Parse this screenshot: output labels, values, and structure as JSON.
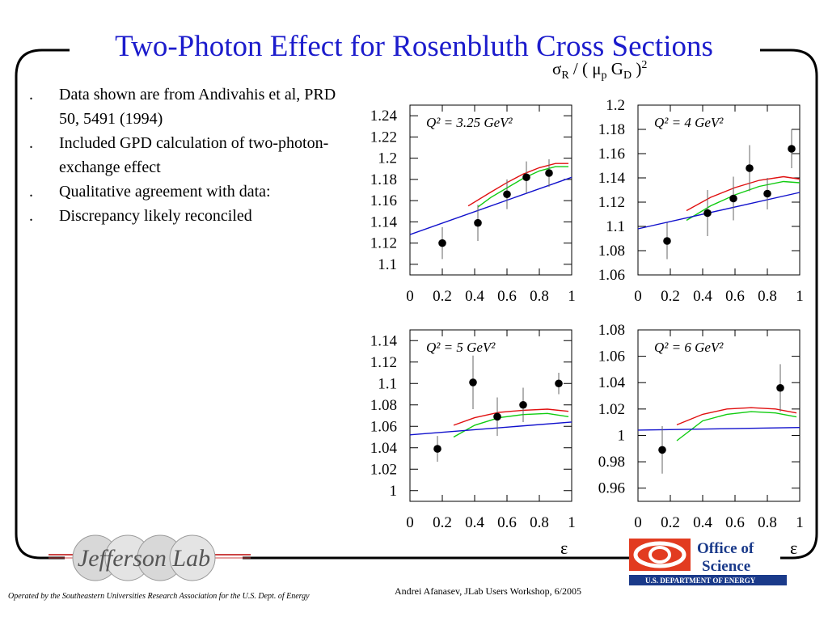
{
  "title": "Two-Photon Effect for Rosenbluth Cross Sections",
  "bullets": [
    "Data shown are from Andivahis et al, PRD 50, 5491 (1994)",
    "Included GPD calculation of two-photon-exchange effect",
    "Qualitative agreement with data:",
    "Discrepancy likely reconciled"
  ],
  "bullet_marker": ".",
  "ylabel": {
    "sigma": "σ",
    "r": "R",
    "mid": " / ( μ",
    "p": "p",
    "g": " G",
    "d": "D",
    "close": " )",
    "sq": "2"
  },
  "xlabel": "ε",
  "footer_left": "Operated by the Southeastern Universities Research Association for the U.S. Dept. of Energy",
  "footer_right": "Andrei Afanasev, JLab Users Workshop, 6/2005",
  "logo_left": "Jefferson Lab",
  "logo_right": {
    "line1": "Office of",
    "line2": "Science",
    "line3": "U.S. DEPARTMENT OF ENERGY"
  },
  "colors": {
    "title": "#1c1ccc",
    "red": "#e01010",
    "green": "#10cc10",
    "blue": "#1010cc"
  },
  "chart_data": [
    {
      "type": "scatter",
      "annotation": "Q² = 3.25 GeV²",
      "xlim": [
        0,
        1
      ],
      "ylim": [
        1.09,
        1.25
      ],
      "xticks": [
        "0",
        "0.2",
        "0.4",
        "0.6",
        "0.8",
        "1"
      ],
      "yticks": [
        "1.1",
        "1.12",
        "1.14",
        "1.16",
        "1.18",
        "1.2",
        "1.22",
        "1.24"
      ],
      "points": [
        {
          "x": 0.2,
          "y": 1.12,
          "err": 0.015
        },
        {
          "x": 0.42,
          "y": 1.139,
          "err": 0.017
        },
        {
          "x": 0.6,
          "y": 1.166,
          "err": 0.014
        },
        {
          "x": 0.72,
          "y": 1.182,
          "err": 0.015
        },
        {
          "x": 0.86,
          "y": 1.186,
          "err": 0.013
        }
      ],
      "lines": [
        {
          "color": "red",
          "x": [
            0.36,
            0.5,
            0.6,
            0.7,
            0.8,
            0.9,
            0.98
          ],
          "y": [
            1.155,
            1.168,
            1.177,
            1.185,
            1.191,
            1.195,
            1.195
          ]
        },
        {
          "color": "green",
          "x": [
            0.42,
            0.5,
            0.6,
            0.7,
            0.8,
            0.9,
            0.98
          ],
          "y": [
            1.154,
            1.163,
            1.172,
            1.181,
            1.188,
            1.192,
            1.192
          ]
        },
        {
          "color": "blue",
          "x": [
            0,
            1
          ],
          "y": [
            1.128,
            1.182
          ]
        }
      ]
    },
    {
      "type": "scatter",
      "annotation": "Q² = 4 GeV²",
      "xlim": [
        0,
        1
      ],
      "ylim": [
        1.06,
        1.2
      ],
      "xticks": [
        "0",
        "0.2",
        "0.4",
        "0.6",
        "0.8",
        "1"
      ],
      "yticks": [
        "1.06",
        "1.08",
        "1.1",
        "1.12",
        "1.14",
        "1.16",
        "1.18",
        "1.2"
      ],
      "points": [
        {
          "x": 0.18,
          "y": 1.088,
          "err": 0.015
        },
        {
          "x": 0.43,
          "y": 1.111,
          "err": 0.019
        },
        {
          "x": 0.59,
          "y": 1.123,
          "err": 0.018
        },
        {
          "x": 0.69,
          "y": 1.148,
          "err": 0.019
        },
        {
          "x": 0.8,
          "y": 1.127,
          "err": 0.013
        },
        {
          "x": 0.95,
          "y": 1.164,
          "err": 0.016
        }
      ],
      "lines": [
        {
          "color": "red",
          "x": [
            0.3,
            0.45,
            0.6,
            0.75,
            0.9,
            1
          ],
          "y": [
            1.113,
            1.124,
            1.132,
            1.138,
            1.141,
            1.139
          ]
        },
        {
          "color": "green",
          "x": [
            0.3,
            0.45,
            0.6,
            0.75,
            0.9,
            1
          ],
          "y": [
            1.105,
            1.117,
            1.126,
            1.133,
            1.137,
            1.136
          ]
        },
        {
          "color": "blue",
          "x": [
            0,
            1
          ],
          "y": [
            1.098,
            1.128
          ]
        }
      ]
    },
    {
      "type": "scatter",
      "annotation": "Q² = 5 GeV²",
      "xlim": [
        0,
        1
      ],
      "ylim": [
        0.99,
        1.15
      ],
      "xticks": [
        "0",
        "0.2",
        "0.4",
        "0.6",
        "0.8",
        "1"
      ],
      "yticks": [
        "1",
        "1.02",
        "1.04",
        "1.06",
        "1.08",
        "1.1",
        "1.12",
        "1.14"
      ],
      "points": [
        {
          "x": 0.17,
          "y": 1.039,
          "err": 0.012
        },
        {
          "x": 0.39,
          "y": 1.101,
          "err": 0.025
        },
        {
          "x": 0.54,
          "y": 1.069,
          "err": 0.018
        },
        {
          "x": 0.7,
          "y": 1.08,
          "err": 0.016
        },
        {
          "x": 0.92,
          "y": 1.1,
          "err": 0.01
        }
      ],
      "lines": [
        {
          "color": "red",
          "x": [
            0.27,
            0.4,
            0.55,
            0.7,
            0.85,
            0.98
          ],
          "y": [
            1.061,
            1.068,
            1.073,
            1.075,
            1.076,
            1.074
          ]
        },
        {
          "color": "green",
          "x": [
            0.27,
            0.4,
            0.55,
            0.7,
            0.85,
            0.98
          ],
          "y": [
            1.05,
            1.061,
            1.068,
            1.071,
            1.072,
            1.069
          ]
        },
        {
          "color": "blue",
          "x": [
            0,
            1
          ],
          "y": [
            1.052,
            1.064
          ]
        }
      ]
    },
    {
      "type": "scatter",
      "annotation": "Q² = 6 GeV²",
      "xlim": [
        0,
        1
      ],
      "ylim": [
        0.95,
        1.08
      ],
      "xticks": [
        "0",
        "0.2",
        "0.4",
        "0.6",
        "0.8",
        "1"
      ],
      "yticks": [
        "0.96",
        "0.98",
        "1",
        "1.02",
        "1.04",
        "1.06",
        "1.08"
      ],
      "points": [
        {
          "x": 0.15,
          "y": 0.989,
          "err": 0.018
        },
        {
          "x": 0.88,
          "y": 1.036,
          "err": 0.018
        }
      ],
      "lines": [
        {
          "color": "red",
          "x": [
            0.24,
            0.4,
            0.55,
            0.7,
            0.85,
            0.98
          ],
          "y": [
            1.008,
            1.016,
            1.02,
            1.021,
            1.02,
            1.017
          ]
        },
        {
          "color": "green",
          "x": [
            0.24,
            0.4,
            0.55,
            0.7,
            0.85,
            0.98
          ],
          "y": [
            0.996,
            1.011,
            1.016,
            1.018,
            1.017,
            1.014
          ]
        },
        {
          "color": "blue",
          "x": [
            0,
            1
          ],
          "y": [
            1.004,
            1.006
          ]
        }
      ]
    }
  ]
}
